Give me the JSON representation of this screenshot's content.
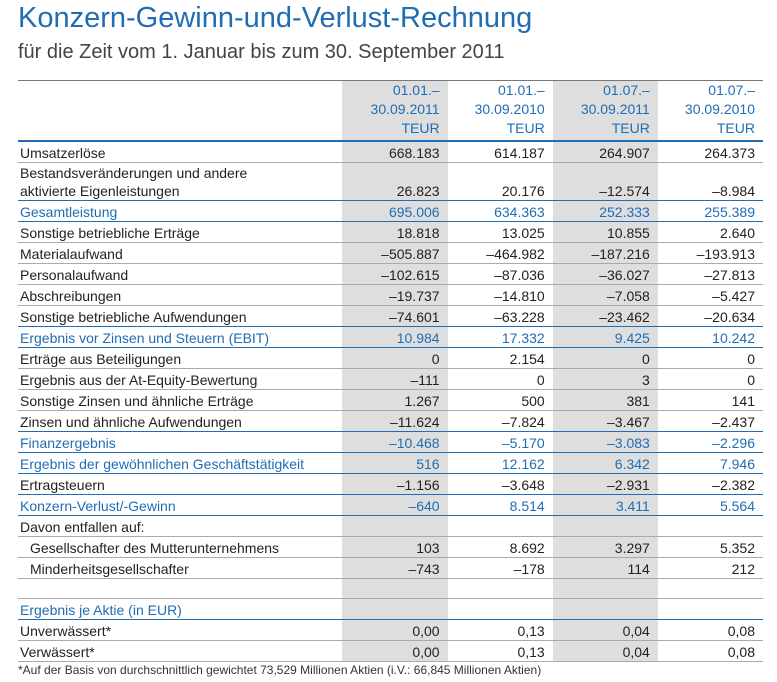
{
  "header": {
    "title": "Konzern-Gewinn-und-Verlust-Rechnung",
    "subtitle": "für die Zeit vom 1. Januar bis zum 30. September 2011"
  },
  "table": {
    "shaded_columns": [
      0,
      2
    ],
    "columns": [
      [
        "01.01.–",
        "30.09.2011",
        "TEUR"
      ],
      [
        "01.01.–",
        "30.09.2010",
        "TEUR"
      ],
      [
        "01.07.–",
        "30.09.2011",
        "TEUR"
      ],
      [
        "01.07.–",
        "30.09.2010",
        "TEUR"
      ]
    ],
    "rows": [
      {
        "label": "Umsatzerlöse",
        "values": [
          "668.183",
          "614.187",
          "264.907",
          "264.373"
        ]
      },
      {
        "label": [
          "Bestandsveränderungen und andere",
          "aktivierte Eigenleistungen"
        ],
        "values": [
          "26.823",
          "20.176",
          "–12.574",
          "–8.984"
        ]
      },
      {
        "label": "Gesamtleistung",
        "highlight": true,
        "values": [
          "695.006",
          "634.363",
          "252.333",
          "255.389"
        ]
      },
      {
        "label": "Sonstige betriebliche Erträge",
        "values": [
          "18.818",
          "13.025",
          "10.855",
          "2.640"
        ]
      },
      {
        "label": "Materialaufwand",
        "values": [
          "–505.887",
          "–464.982",
          "–187.216",
          "–193.913"
        ]
      },
      {
        "label": "Personalaufwand",
        "values": [
          "–102.615",
          "–87.036",
          "–36.027",
          "–27.813"
        ]
      },
      {
        "label": "Abschreibungen",
        "values": [
          "–19.737",
          "–14.810",
          "–7.058",
          "–5.427"
        ]
      },
      {
        "label": "Sonstige betriebliche Aufwendungen",
        "values": [
          "–74.601",
          "–63.228",
          "–23.462",
          "–20.634"
        ]
      },
      {
        "label": "Ergebnis vor Zinsen und Steuern (EBIT)",
        "highlight": true,
        "values": [
          "10.984",
          "17.332",
          "9.425",
          "10.242"
        ]
      },
      {
        "label": "Erträge aus Beteiligungen",
        "values": [
          "0",
          "2.154",
          "0",
          "0"
        ]
      },
      {
        "label": "Ergebnis aus der At-Equity-Bewertung",
        "values": [
          "–111",
          "0",
          "3",
          "0"
        ]
      },
      {
        "label": "Sonstige Zinsen und ähnliche Erträge",
        "values": [
          "1.267",
          "500",
          "381",
          "141"
        ]
      },
      {
        "label": "Zinsen und ähnliche Aufwendungen",
        "values": [
          "–11.624",
          "–7.824",
          "–3.467",
          "–2.437"
        ]
      },
      {
        "label": "Finanzergebnis",
        "highlight": true,
        "values": [
          "–10.468",
          "–5.170",
          "–3.083",
          "–2.296"
        ]
      },
      {
        "label": "Ergebnis der gewöhnlichen Geschäftstätigkeit",
        "highlight": true,
        "values": [
          "516",
          "12.162",
          "6.342",
          "7.946"
        ]
      },
      {
        "label": "Ertragsteuern",
        "values": [
          "–1.156",
          "–3.648",
          "–2.931",
          "–2.382"
        ]
      },
      {
        "label": "Konzern-Verlust/-Gewinn",
        "highlight": true,
        "values": [
          "–640",
          "8.514",
          "3.411",
          "5.564"
        ]
      },
      {
        "label": "Davon entfallen auf:"
      },
      {
        "label": "Gesellschafter des Mutterunternehmens",
        "indent": true,
        "values": [
          "103",
          "8.692",
          "3.297",
          "5.352"
        ]
      },
      {
        "label": "Minderheitsgesellschafter",
        "indent": true,
        "values": [
          "–743",
          "–178",
          "114",
          "212"
        ]
      },
      {
        "label": "Ergebnis je Aktie (in EUR)",
        "highlight": true,
        "gap_before": true
      },
      {
        "label": "Unverwässert*",
        "values": [
          "0,00",
          "0,13",
          "0,04",
          "0,08"
        ]
      },
      {
        "label": "Verwässert*",
        "values": [
          "0,00",
          "0,13",
          "0,04",
          "0,08"
        ]
      }
    ]
  },
  "footnote": "*Auf der Basis von durchschnittlich gewichtet 73,529 Millionen Aktien (i.V.: 66,845 Millionen Aktien)"
}
